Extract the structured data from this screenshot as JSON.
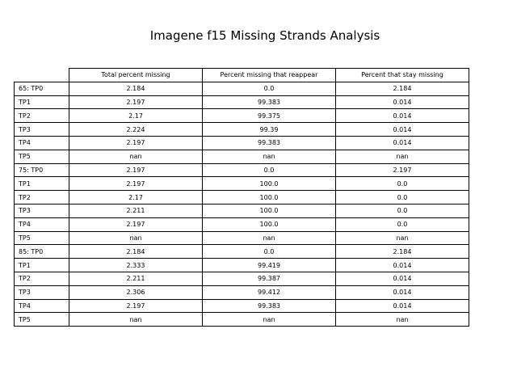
{
  "chart_data": {
    "type": "table",
    "title": "Imagene f15 Missing Strands Analysis",
    "columns": [
      "Total percent missing",
      "Percent missing that reappear",
      "Percent that stay missing"
    ],
    "rows": [
      {
        "label": "65: TP0",
        "values": [
          "2.184",
          "0.0",
          "2.184"
        ]
      },
      {
        "label": "TP1",
        "values": [
          "2.197",
          "99.383",
          "0.014"
        ]
      },
      {
        "label": "TP2",
        "values": [
          "2.17",
          "99.375",
          "0.014"
        ]
      },
      {
        "label": "TP3",
        "values": [
          "2.224",
          "99.39",
          "0.014"
        ]
      },
      {
        "label": "TP4",
        "values": [
          "2.197",
          "99.383",
          "0.014"
        ]
      },
      {
        "label": "TP5",
        "values": [
          "nan",
          "nan",
          "nan"
        ]
      },
      {
        "label": "75: TP0",
        "values": [
          "2.197",
          "0.0",
          "2.197"
        ]
      },
      {
        "label": "TP1",
        "values": [
          "2.197",
          "100.0",
          "0.0"
        ]
      },
      {
        "label": "TP2",
        "values": [
          "2.17",
          "100.0",
          "0.0"
        ]
      },
      {
        "label": "TP3",
        "values": [
          "2.211",
          "100.0",
          "0.0"
        ]
      },
      {
        "label": "TP4",
        "values": [
          "2.197",
          "100.0",
          "0.0"
        ]
      },
      {
        "label": "TP5",
        "values": [
          "nan",
          "nan",
          "nan"
        ]
      },
      {
        "label": "85: TP0",
        "values": [
          "2.184",
          "0.0",
          "2.184"
        ]
      },
      {
        "label": "TP1",
        "values": [
          "2.333",
          "99.419",
          "0.014"
        ]
      },
      {
        "label": "TP2",
        "values": [
          "2.211",
          "99.387",
          "0.014"
        ]
      },
      {
        "label": "TP3",
        "values": [
          "2.306",
          "99.412",
          "0.014"
        ]
      },
      {
        "label": "TP4",
        "values": [
          "2.197",
          "99.383",
          "0.014"
        ]
      },
      {
        "label": "TP5",
        "values": [
          "nan",
          "nan",
          "nan"
        ]
      }
    ]
  }
}
